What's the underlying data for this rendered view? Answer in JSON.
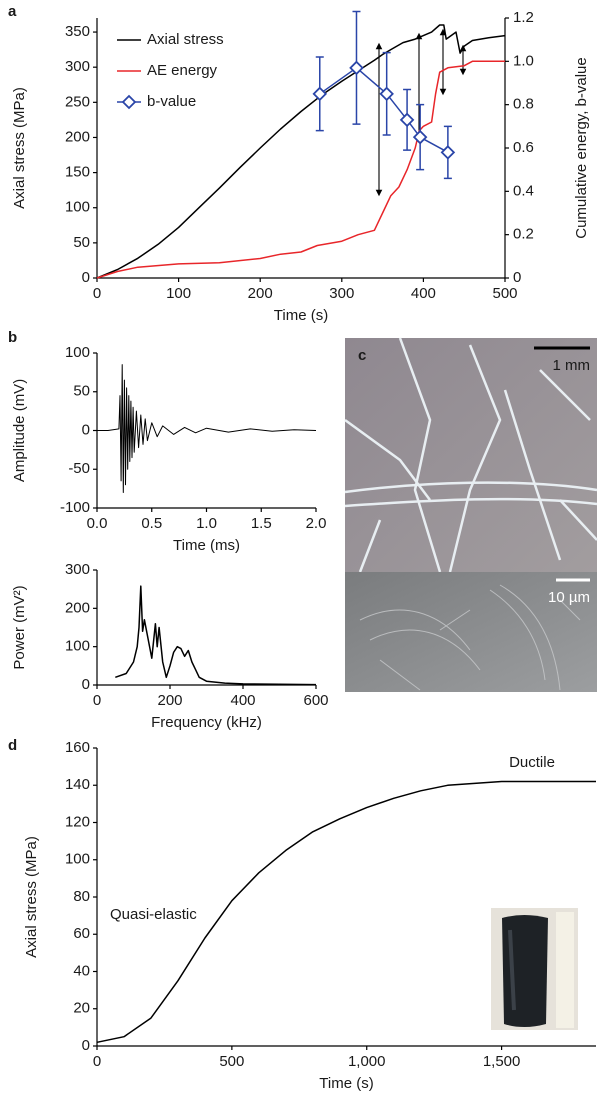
{
  "chart_data": [
    {
      "panel": "a",
      "type": "line",
      "xlabel": "Time (s)",
      "ylabel": "Axial stress (MPa)",
      "y2label": "Cumulative energy, b-value",
      "xlim": [
        0,
        500
      ],
      "xticks": [
        0,
        100,
        200,
        300,
        400,
        500
      ],
      "ylim": [
        0,
        370
      ],
      "yticks": [
        0,
        50,
        100,
        150,
        200,
        250,
        300,
        350
      ],
      "y2lim": [
        0,
        1.2
      ],
      "y2ticks": [
        0,
        0.2,
        0.4,
        0.6,
        0.8,
        {
          "value": 1,
          "label": "1.0"
        },
        1.2
      ],
      "legend": "upper left",
      "series": [
        {
          "name": "Axial stress",
          "color": "#000000",
          "x": [
            0,
            25,
            50,
            75,
            100,
            125,
            150,
            175,
            200,
            225,
            250,
            275,
            300,
            320,
            340,
            350,
            360,
            375,
            390,
            400,
            410,
            420,
            425,
            428,
            440,
            445,
            450,
            460,
            480,
            500
          ],
          "values": [
            0,
            12,
            28,
            48,
            72,
            100,
            128,
            157,
            185,
            212,
            237,
            260,
            280,
            295,
            310,
            318,
            325,
            335,
            340,
            345,
            350,
            360,
            360,
            340,
            350,
            320,
            330,
            338,
            342,
            345
          ]
        },
        {
          "name": "AE energy",
          "color": "#e8262a",
          "axis": "y2",
          "x": [
            0,
            25,
            50,
            100,
            150,
            200,
            225,
            250,
            270,
            300,
            320,
            340,
            350,
            360,
            370,
            380,
            390,
            395,
            400,
            410,
            415,
            420,
            430,
            450,
            460,
            480,
            500
          ],
          "values": [
            0,
            0.03,
            0.05,
            0.065,
            0.07,
            0.09,
            0.11,
            0.12,
            0.15,
            0.17,
            0.2,
            0.22,
            0.3,
            0.38,
            0.42,
            0.5,
            0.6,
            0.68,
            0.7,
            0.72,
            0.85,
            0.95,
            0.97,
            0.98,
            1.0,
            1.0,
            1.0
          ]
        },
        {
          "name": "b-value",
          "color": "#2a45a8",
          "axis": "y2",
          "marker": "diamond",
          "x": [
            273,
            318,
            355,
            380,
            396,
            430
          ],
          "values": [
            0.85,
            0.97,
            0.85,
            0.73,
            0.65,
            0.58
          ],
          "errors": [
            0.17,
            0.26,
            0.19,
            0.14,
            0.15,
            0.12
          ]
        }
      ]
    },
    {
      "panel": "b",
      "type": "line",
      "xlabel": "Time (ms)",
      "ylabel": "Amplitude (mV)",
      "xlim": [
        0,
        2
      ],
      "xticks": [
        {
          "value": 0,
          "label": "0.0"
        },
        0.5,
        {
          "value": 1,
          "label": "1.0"
        },
        1.5,
        {
          "value": 2,
          "label": "2.0"
        }
      ],
      "ylim": [
        -100,
        100
      ],
      "yticks": [
        -100,
        -50,
        0,
        50,
        100
      ],
      "series": [
        {
          "color": "#000000",
          "x": [
            0,
            0.1,
            0.2,
            0.21,
            0.22,
            0.23,
            0.24,
            0.25,
            0.26,
            0.27,
            0.28,
            0.29,
            0.3,
            0.31,
            0.32,
            0.33,
            0.34,
            0.36,
            0.38,
            0.4,
            0.42,
            0.44,
            0.46,
            0.5,
            0.55,
            0.6,
            0.7,
            0.8,
            0.9,
            1.0,
            1.2,
            1.4,
            1.6,
            1.8,
            2.0
          ],
          "values": [
            0,
            0,
            2,
            45,
            -65,
            85,
            -80,
            65,
            -70,
            55,
            -50,
            45,
            -40,
            38,
            -35,
            30,
            -28,
            25,
            -22,
            20,
            -18,
            15,
            -13,
            10,
            -8,
            6,
            -5,
            4,
            -3,
            3,
            -2,
            2,
            -1,
            1,
            0
          ]
        }
      ]
    },
    {
      "type": "line",
      "xlabel": "Frequency (kHz)",
      "ylabel": "Power (mV²)",
      "xlim": [
        0,
        600
      ],
      "xticks": [
        0,
        200,
        400,
        600
      ],
      "ylim": [
        0,
        300
      ],
      "yticks": [
        0,
        100,
        200,
        300
      ],
      "series": [
        {
          "color": "#000000",
          "x": [
            50,
            80,
            100,
            110,
            115,
            120,
            125,
            130,
            140,
            150,
            160,
            165,
            170,
            180,
            190,
            200,
            210,
            220,
            230,
            240,
            250,
            260,
            270,
            280,
            300,
            350,
            400,
            500,
            600
          ],
          "values": [
            20,
            30,
            60,
            100,
            150,
            258,
            140,
            170,
            120,
            70,
            160,
            100,
            150,
            60,
            20,
            50,
            85,
            100,
            95,
            75,
            90,
            60,
            40,
            20,
            10,
            5,
            3,
            2,
            1
          ]
        }
      ]
    },
    {
      "panel": "d",
      "type": "line",
      "xlabel": "Time (s)",
      "ylabel": "Axial stress (MPa)",
      "xlim": [
        0,
        1850
      ],
      "xticks": [
        0,
        500,
        {
          "value": 1000,
          "label": "1,000"
        },
        {
          "value": 1500,
          "label": "1,500"
        }
      ],
      "ylim": [
        0,
        160
      ],
      "yticks": [
        0,
        20,
        40,
        60,
        80,
        100,
        120,
        140,
        160
      ],
      "annotations": [
        "Ductile",
        "Quasi-elastic"
      ],
      "series": [
        {
          "color": "#000000",
          "x": [
            0,
            100,
            200,
            300,
            400,
            500,
            600,
            700,
            800,
            900,
            1000,
            1100,
            1200,
            1300,
            1400,
            1500,
            1600,
            1700,
            1850
          ],
          "values": [
            2,
            5,
            15,
            35,
            58,
            78,
            93,
            105,
            115,
            122,
            128,
            133,
            137,
            140,
            141,
            142,
            142,
            142,
            142
          ]
        }
      ]
    }
  ],
  "images": {
    "panel": "c",
    "scale_bars": [
      "1 mm",
      "10 µm"
    ]
  }
}
